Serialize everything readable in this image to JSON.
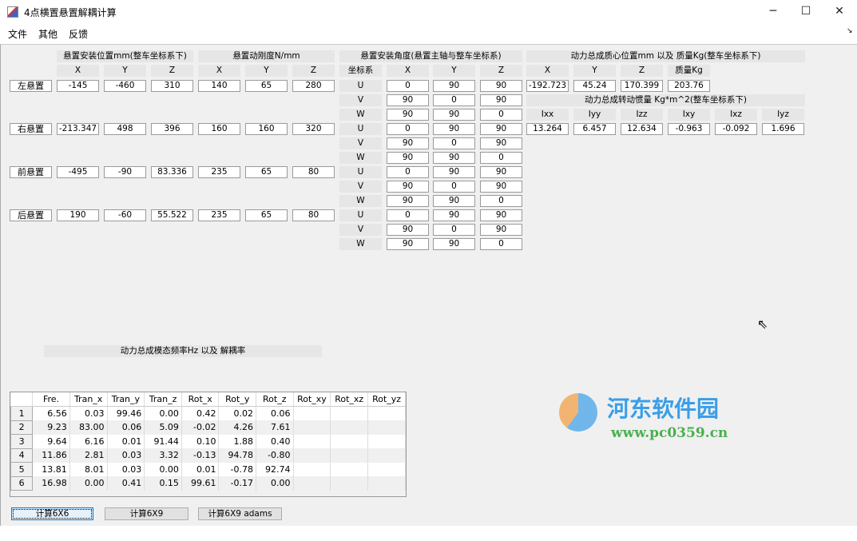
{
  "window": {
    "title": "4点横置悬置解耦计算",
    "minimize": "─",
    "maximize": "☐",
    "close": "✕"
  },
  "watermark": {
    "name": "河东软件园",
    "url": "www.pc0359.cn"
  },
  "menu": [
    "文件",
    "其他",
    "反馈"
  ],
  "mounts": {
    "position_title": "悬置安装位置mm(整车坐标系下)",
    "stiffness_title": "悬置动刚度N/mm",
    "angle_title": "悬置安装角度(悬置主轴与整车坐标系)",
    "axis_headers": [
      "X",
      "Y",
      "Z"
    ],
    "coord_header": "坐标系",
    "rows": [
      {
        "name": "左悬置",
        "position": [
          "-145",
          "-460",
          "310"
        ],
        "stiffness": [
          "140",
          "65",
          "280"
        ]
      },
      {
        "name": "右悬置",
        "position": [
          "-213.347",
          "498",
          "396"
        ],
        "stiffness": [
          "160",
          "160",
          "320"
        ]
      },
      {
        "name": "前悬置",
        "position": [
          "-495",
          "-90",
          "83.336"
        ],
        "stiffness": [
          "235",
          "65",
          "80"
        ]
      },
      {
        "name": "后悬置",
        "position": [
          "190",
          "-60",
          "55.522"
        ],
        "stiffness": [
          "235",
          "65",
          "80"
        ]
      }
    ],
    "angles": [
      [
        {
          "axis": "U",
          "v": [
            "0",
            "90",
            "90"
          ]
        },
        {
          "axis": "V",
          "v": [
            "90",
            "0",
            "90"
          ]
        },
        {
          "axis": "W",
          "v": [
            "90",
            "90",
            "0"
          ]
        }
      ],
      [
        {
          "axis": "U",
          "v": [
            "0",
            "90",
            "90"
          ]
        },
        {
          "axis": "V",
          "v": [
            "90",
            "0",
            "90"
          ]
        },
        {
          "axis": "W",
          "v": [
            "90",
            "90",
            "0"
          ]
        }
      ],
      [
        {
          "axis": "U",
          "v": [
            "0",
            "90",
            "90"
          ]
        },
        {
          "axis": "V",
          "v": [
            "90",
            "0",
            "90"
          ]
        },
        {
          "axis": "W",
          "v": [
            "90",
            "90",
            "0"
          ]
        }
      ],
      [
        {
          "axis": "U",
          "v": [
            "0",
            "90",
            "90"
          ]
        },
        {
          "axis": "V",
          "v": [
            "90",
            "0",
            "90"
          ]
        },
        {
          "axis": "W",
          "v": [
            "90",
            "90",
            "0"
          ]
        }
      ]
    ]
  },
  "powertrain": {
    "mass_title": "动力总成质心位置mm 以及 质量Kg(整车坐标系下)",
    "mass_headers": [
      "X",
      "Y",
      "Z",
      "质量Kg"
    ],
    "mass_values": [
      "-192.723",
      "45.24",
      "170.399",
      "203.76"
    ],
    "inertia_title": "动力总成转动惯量 Kg*m^2(整车坐标系下)",
    "inertia_headers": [
      "Ixx",
      "Iyy",
      "Izz",
      "Ixy",
      "Ixz",
      "Iyz"
    ],
    "inertia_values": [
      "13.264",
      "6.457",
      "12.634",
      "-0.963",
      "-0.092",
      "1.696"
    ]
  },
  "modal": {
    "title": "动力总成模态频率Hz 以及 解耦率",
    "columns": [
      "",
      "Fre.",
      "Tran_x",
      "Tran_y",
      "Tran_z",
      "Rot_x",
      "Rot_y",
      "Rot_z",
      "Rot_xy",
      "Rot_xz",
      "Rot_yz"
    ],
    "rows": [
      [
        "1",
        "6.56",
        "0.03",
        "99.46",
        "0.00",
        "0.42",
        "0.02",
        "0.06",
        "",
        "",
        ""
      ],
      [
        "2",
        "9.23",
        "83.00",
        "0.06",
        "5.09",
        "-0.02",
        "4.26",
        "7.61",
        "",
        "",
        ""
      ],
      [
        "3",
        "9.64",
        "6.16",
        "0.01",
        "91.44",
        "0.10",
        "1.88",
        "0.40",
        "",
        "",
        ""
      ],
      [
        "4",
        "11.86",
        "2.81",
        "0.03",
        "3.32",
        "-0.13",
        "94.78",
        "-0.80",
        "",
        "",
        ""
      ],
      [
        "5",
        "13.81",
        "8.01",
        "0.03",
        "0.00",
        "0.01",
        "-0.78",
        "92.74",
        "",
        "",
        ""
      ],
      [
        "6",
        "16.98",
        "0.00",
        "0.41",
        "0.15",
        "99.61",
        "-0.17",
        "0.00",
        "",
        "",
        ""
      ]
    ]
  },
  "buttons": [
    "计算6X6",
    "计算6X9",
    "计算6X9 adams"
  ]
}
